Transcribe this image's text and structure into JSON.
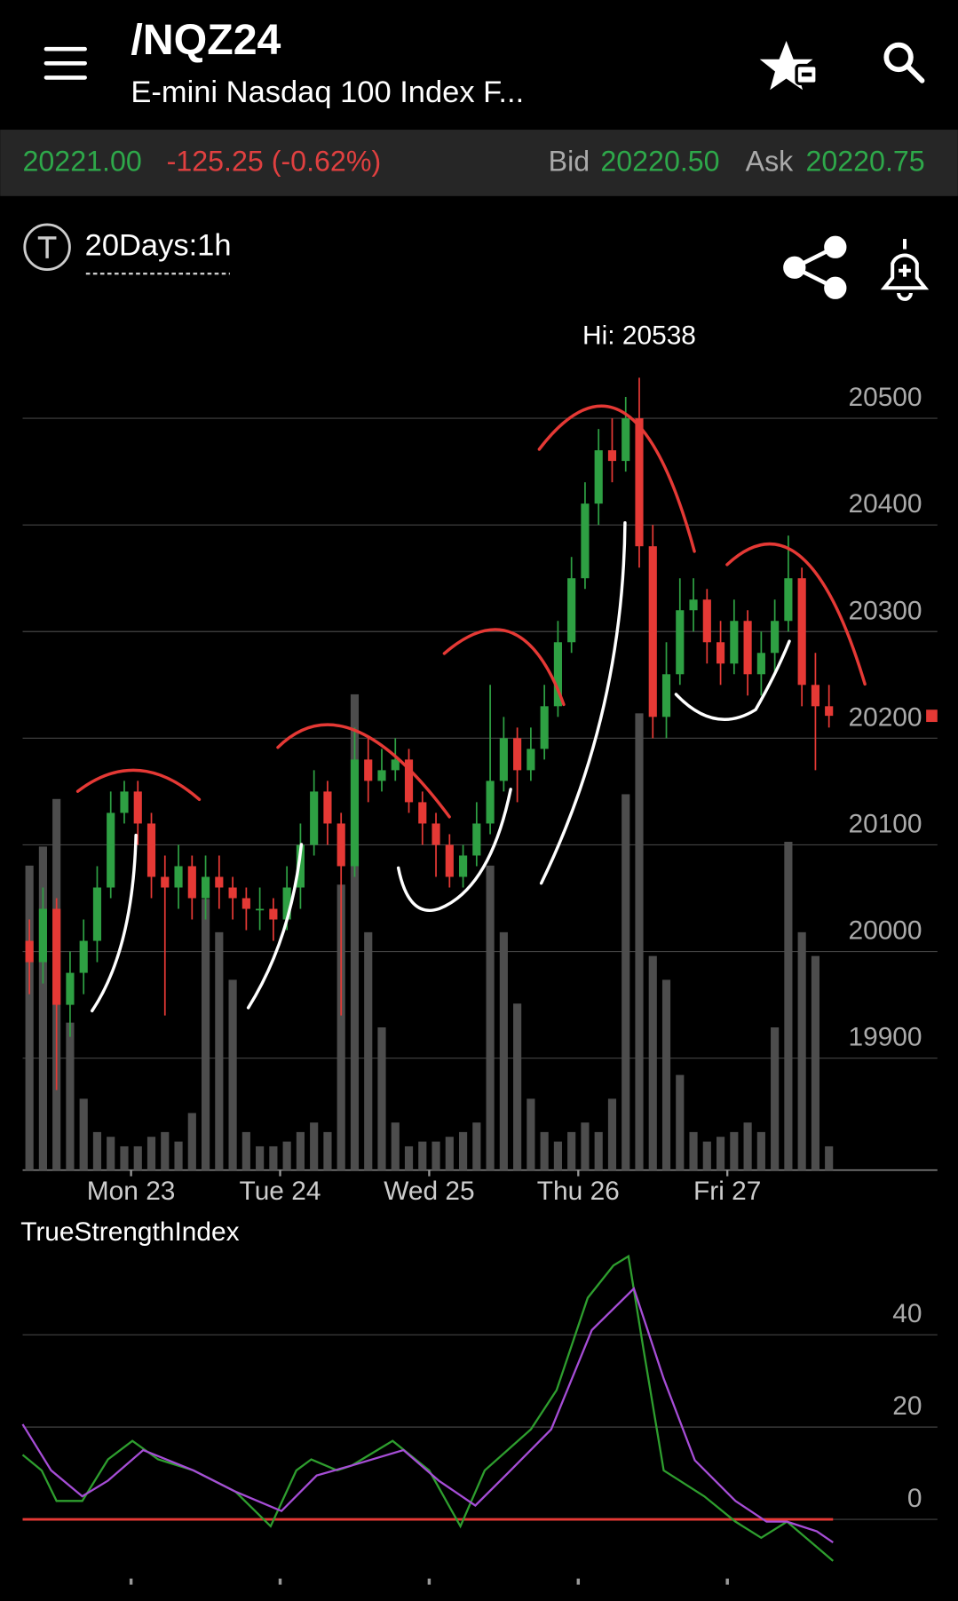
{
  "header": {
    "title": "/NQZ24",
    "subtitle": "E-mini Nasdaq 100 Index F..."
  },
  "quote": {
    "last": "20221.00",
    "change": "-125.25 (-0.62%)",
    "bid_label": "Bid",
    "bid": "20220.50",
    "ask_label": "Ask",
    "ask": "20220.75"
  },
  "toolbar": {
    "period": "20Days:1h"
  },
  "chart_data": [
    {
      "type": "candlestick",
      "annotation": "Hi: 20538",
      "xlim": [
        0,
        67.5
      ],
      "xticks": [
        {
          "value": 8,
          "label": "Mon 23"
        },
        {
          "value": 19,
          "label": "Tue 24"
        },
        {
          "value": 30,
          "label": "Wed 25"
        },
        {
          "value": 41,
          "label": "Thu 26"
        },
        {
          "value": 52,
          "label": "Fri 27"
        }
      ],
      "ylim": [
        19795,
        20605
      ],
      "yticks": [
        19900,
        20000,
        20100,
        20200,
        20300,
        20400,
        20500
      ],
      "grid": true,
      "up_color": "#2ea043",
      "down_color": "#e53935",
      "volume_color": "#4d4d4d",
      "open": [
        20010,
        19990,
        20040,
        19950,
        19980,
        20010,
        20060,
        20130,
        20150,
        20120,
        20070,
        20060,
        20080,
        20050,
        20070,
        20060,
        20050,
        20040,
        20040,
        20030,
        20060,
        20100,
        20150,
        20120,
        20080,
        20180,
        20160,
        20170,
        20180,
        20140,
        20120,
        20100,
        20070,
        20090,
        20120,
        20160,
        20200,
        20170,
        20190,
        20230,
        20290,
        20350,
        20420,
        20470,
        20460,
        20500,
        20380,
        20220,
        20260,
        20320,
        20330,
        20290,
        20270,
        20310,
        20260,
        20280,
        20310,
        20350,
        20250,
        20230
      ],
      "high": [
        20030,
        20060,
        20050,
        20000,
        20030,
        20080,
        20150,
        20160,
        20160,
        20130,
        20090,
        20100,
        20090,
        20090,
        20090,
        20070,
        20060,
        20060,
        20050,
        20080,
        20120,
        20170,
        20160,
        20130,
        20210,
        20200,
        20190,
        20200,
        20190,
        20150,
        20130,
        20110,
        20100,
        20140,
        20250,
        20220,
        20210,
        20210,
        20250,
        20310,
        20370,
        20440,
        20490,
        20500,
        20520,
        20538,
        20400,
        20290,
        20350,
        20350,
        20340,
        20310,
        20330,
        20320,
        20300,
        20330,
        20390,
        20360,
        20280,
        20250
      ],
      "low": [
        19960,
        19970,
        19870,
        19920,
        19960,
        19990,
        20050,
        20120,
        20100,
        20050,
        19940,
        20040,
        20030,
        20030,
        20040,
        20030,
        20020,
        20020,
        20010,
        20020,
        20040,
        20090,
        20100,
        19940,
        20070,
        20140,
        20150,
        20160,
        20130,
        20100,
        20070,
        20060,
        20060,
        20080,
        20110,
        20150,
        20140,
        20160,
        20180,
        20220,
        20280,
        20340,
        20400,
        20440,
        20450,
        20360,
        20200,
        20200,
        20250,
        20300,
        20270,
        20250,
        20260,
        20240,
        20240,
        20260,
        20300,
        20230,
        20170,
        20210
      ],
      "close": [
        19990,
        20040,
        19950,
        19980,
        20010,
        20060,
        20130,
        20150,
        20120,
        20070,
        20060,
        20080,
        20050,
        20070,
        20060,
        20050,
        20040,
        20040,
        20030,
        20060,
        20100,
        20150,
        20120,
        20080,
        20180,
        20160,
        20170,
        20180,
        20140,
        20120,
        20100,
        20070,
        20090,
        20120,
        20160,
        20200,
        20170,
        20190,
        20230,
        20290,
        20350,
        20420,
        20470,
        20460,
        20500,
        20380,
        20220,
        20260,
        20320,
        20330,
        20290,
        20270,
        20310,
        20260,
        20280,
        20310,
        20350,
        20250,
        20230,
        20221
      ],
      "volume_lim": [
        0,
        100
      ],
      "volume": [
        64,
        68,
        78,
        31,
        15,
        8,
        7,
        5,
        5,
        7,
        8,
        6,
        12,
        57,
        50,
        40,
        8,
        5,
        5,
        6,
        8,
        10,
        8,
        60,
        100,
        50,
        30,
        10,
        5,
        6,
        6,
        7,
        8,
        10,
        64,
        50,
        35,
        15,
        8,
        6,
        8,
        10,
        8,
        15,
        79,
        96,
        45,
        40,
        20,
        8,
        6,
        7,
        8,
        10,
        8,
        30,
        69,
        50,
        45,
        5
      ]
    },
    {
      "type": "line",
      "title": "TrueStrengthIndex",
      "xlim": [
        0,
        67.5
      ],
      "xticks": [
        8,
        19,
        30,
        41,
        52
      ],
      "ylim": [
        -13.7,
        60.4
      ],
      "yticks": [
        0,
        20,
        40
      ],
      "grid": true,
      "hline": 0,
      "hline_color": "#e53935",
      "series": [
        {
          "color": "#2e9e2e",
          "x": [
            0,
            1.4,
            2.5,
            4.4,
            6.3,
            8.1,
            10,
            12.6,
            15.7,
            18.3,
            20.2,
            21.3,
            23.2,
            24.3,
            27.3,
            30,
            32.3,
            34.1,
            37.5,
            39.4,
            41.7,
            43.6,
            44.7,
            45.8,
            47.3,
            50.3,
            52.6,
            54.5,
            56.4,
            58.6,
            59.8
          ],
          "values": [
            14,
            10.6,
            4,
            4,
            13,
            17,
            13,
            10.6,
            6,
            -1.5,
            10.6,
            13,
            10.6,
            11.7,
            17,
            10.6,
            -1.5,
            10.6,
            19.5,
            28,
            48,
            55,
            57,
            37,
            10.6,
            5,
            -0.5,
            -4,
            -0.5,
            -6,
            -9
          ]
        },
        {
          "color": "#a64dd6",
          "x": [
            0,
            2.1,
            4.4,
            6.3,
            8.9,
            12.6,
            15.7,
            19.1,
            21.7,
            24.3,
            28.1,
            30.7,
            33.4,
            36,
            39,
            42,
            45.1,
            47.3,
            49.6,
            52.6,
            54.9,
            56.4,
            58.6,
            59.8
          ],
          "values": [
            20.6,
            10.6,
            5,
            8.4,
            15,
            10.6,
            6,
            1.8,
            9.5,
            11.7,
            15,
            8.4,
            3,
            10.6,
            19.5,
            41,
            50,
            30.5,
            12.8,
            4,
            -0.5,
            -0.5,
            -2.6,
            -5
          ]
        }
      ]
    }
  ]
}
